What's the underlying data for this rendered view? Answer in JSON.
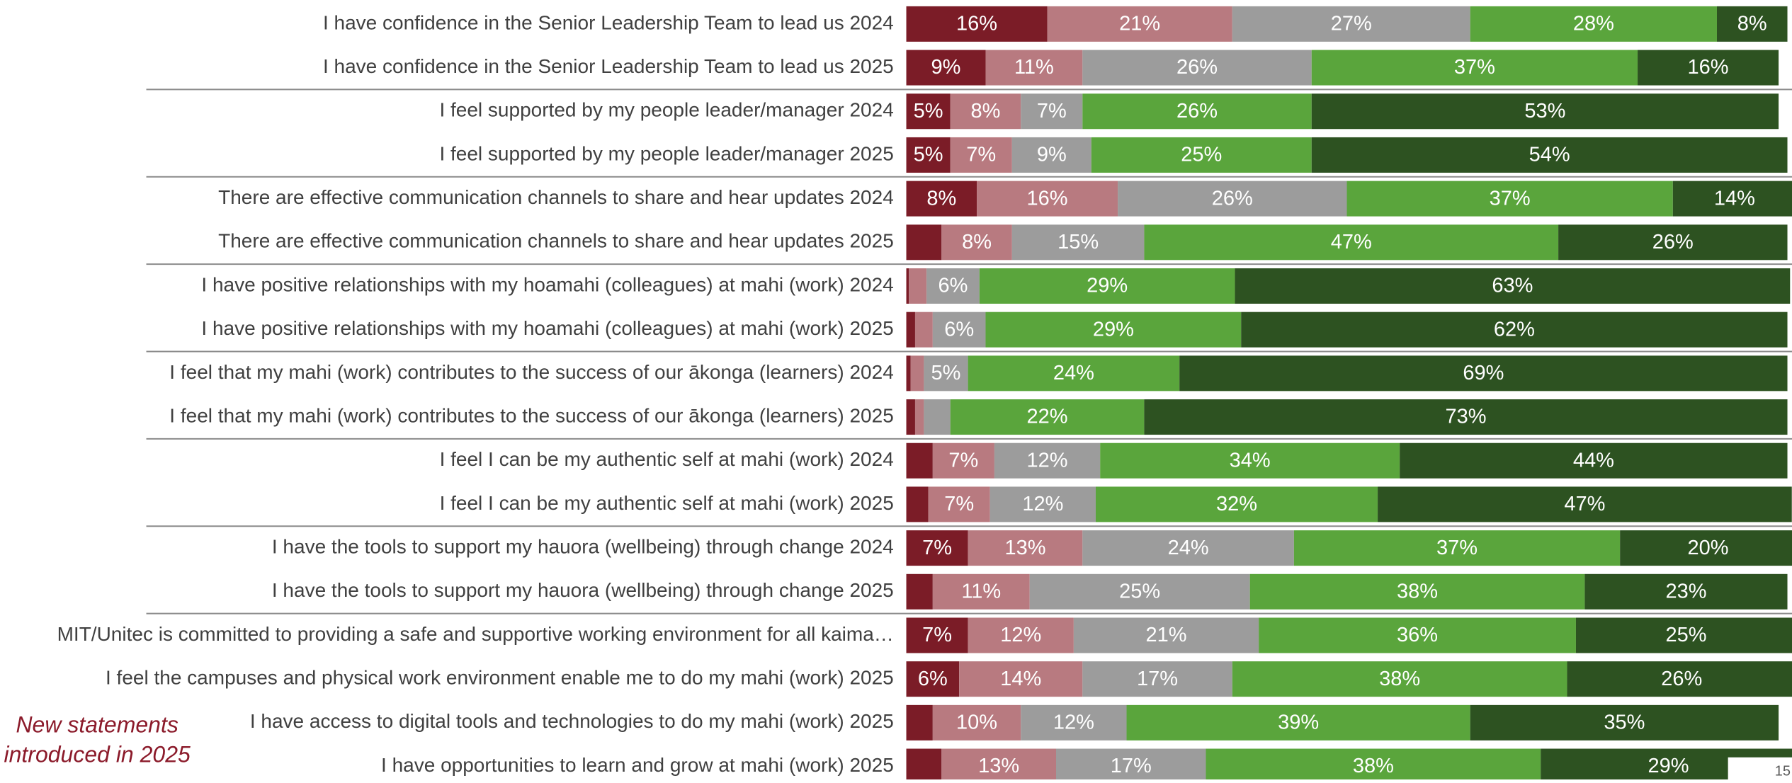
{
  "chart_data": {
    "type": "stacked_barh",
    "categories": [
      "I have confidence in the Senior Leadership Team to lead us 2024",
      "I have confidence in the Senior Leadership Team to lead us 2025",
      "I feel supported by my people leader/manager 2024",
      "I feel supported by my people leader/manager 2025",
      "There are effective communication channels to share and hear updates 2024",
      "There are effective communication channels to share and hear updates 2025",
      "I have positive relationships with my hoamahi (colleagues) at mahi (work) 2024",
      "I have positive relationships with my hoamahi (colleagues) at mahi (work) 2025",
      "I feel that my mahi (work) contributes to the success of our ākonga (learners) 2024",
      "I feel that my mahi (work) contributes to the success of our ākonga (learners) 2025",
      "I feel I can be my authentic self at mahi (work) 2024",
      "I feel I can be my authentic self at mahi (work) 2025",
      "I have the tools to support my hauora (wellbeing) through change 2024",
      "I have the tools to support my hauora (wellbeing) through change 2025",
      "MIT/Unitec is committed to providing a safe and supportive working environment for all kaima…",
      "I feel the campuses and physical work environment enable me to do my mahi (work) 2025",
      "I have access to digital tools and technologies to do my mahi (work) 2025",
      "I have opportunities to learn and grow at mahi (work) 2025"
    ],
    "series": [
      {
        "color": "#7b1c27",
        "values": [
          16,
          9,
          5,
          5,
          8,
          4,
          0.3,
          1,
          0.5,
          1,
          3,
          2.5,
          7,
          3,
          7,
          6,
          3,
          4
        ],
        "value_labels": [
          "16%",
          "9%",
          "5%",
          "5%",
          "8%",
          null,
          null,
          null,
          null,
          null,
          null,
          null,
          "7%",
          null,
          "7%",
          "6%",
          null,
          null
        ]
      },
      {
        "color": "#b87a80",
        "values": [
          21,
          11,
          8,
          7,
          16,
          8,
          2,
          2,
          1.5,
          1,
          7,
          7,
          13,
          11,
          12,
          14,
          10,
          13
        ],
        "value_labels": [
          "21%",
          "11%",
          "8%",
          "7%",
          "16%",
          "8%",
          null,
          null,
          null,
          null,
          "7%",
          "7%",
          "13%",
          "11%",
          "12%",
          "14%",
          "10%",
          "13%"
        ]
      },
      {
        "color": "#9c9c9c",
        "values": [
          27,
          26,
          7,
          9,
          26,
          15,
          6,
          6,
          5,
          3,
          12,
          12,
          24,
          25,
          21,
          17,
          12,
          17
        ],
        "value_labels": [
          "27%",
          "26%",
          "7%",
          "9%",
          "26%",
          "15%",
          "6%",
          "6%",
          "5%",
          null,
          "12%",
          "12%",
          "24%",
          "25%",
          "21%",
          "17%",
          "12%",
          "17%"
        ]
      },
      {
        "color": "#5aa53c",
        "values": [
          28,
          37,
          26,
          25,
          37,
          47,
          29,
          29,
          24,
          22,
          34,
          32,
          37,
          38,
          36,
          38,
          39,
          38
        ],
        "value_labels": [
          "28%",
          "37%",
          "26%",
          "25%",
          "37%",
          "47%",
          "29%",
          "29%",
          "24%",
          "22%",
          "34%",
          "32%",
          "37%",
          "38%",
          "36%",
          "38%",
          "39%",
          "38%"
        ]
      },
      {
        "color": "#2d5221",
        "values": [
          8,
          16,
          53,
          54,
          14,
          26,
          63,
          62,
          69,
          73,
          44,
          47,
          20,
          23,
          25,
          26,
          35,
          29
        ],
        "value_labels": [
          "8%",
          "16%",
          "53%",
          "54%",
          "14%",
          "26%",
          "63%",
          "62%",
          "69%",
          "73%",
          "44%",
          "47%",
          "20%",
          "23%",
          "25%",
          "26%",
          "35%",
          "29%"
        ]
      }
    ],
    "annotation": [
      "New statements",
      "introduced in 2025"
    ],
    "page_number": "15"
  }
}
